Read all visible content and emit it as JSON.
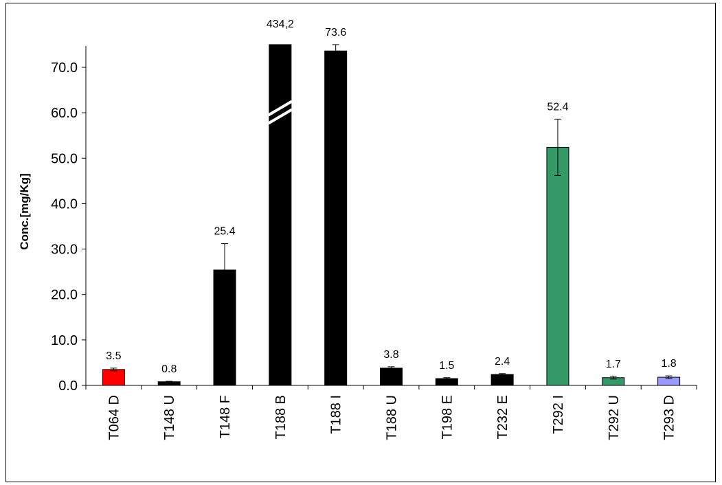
{
  "chart_data": {
    "type": "bar",
    "title": "",
    "xlabel": "",
    "ylabel": "Conc.[mg/Kg]",
    "ylim": [
      0,
      75
    ],
    "yticks": [
      "0.0",
      "10.0",
      "20.0",
      "30.0",
      "40.0",
      "50.0",
      "60.0",
      "70.0"
    ],
    "grid": false,
    "legend": "none",
    "axis_break_on": "T188 B",
    "categories": [
      "T064 D",
      "T148 U",
      "T148 F",
      "T188 B",
      "T188 I",
      "T188 U",
      "T198 E",
      "T232 E",
      "T292 I",
      "T292 U",
      "T293 D"
    ],
    "values": [
      3.5,
      0.8,
      25.4,
      434.2,
      73.6,
      3.8,
      1.5,
      2.4,
      52.4,
      1.7,
      1.8
    ],
    "errors": [
      0.3,
      0.1,
      5.8,
      0,
      2.2,
      0.3,
      0.2,
      0.2,
      6.2,
      0.3,
      0.3
    ],
    "data_labels": [
      "3.5",
      "0.8",
      "25.4",
      "434,2",
      "73.6",
      "3.8",
      "1.5",
      "2.4",
      "52.4",
      "1.7",
      "1.8"
    ],
    "colors": [
      "#ff0000",
      "#000000",
      "#000000",
      "#000000",
      "#000000",
      "#000000",
      "#000000",
      "#000000",
      "#339966",
      "#339966",
      "#9999ff"
    ]
  }
}
